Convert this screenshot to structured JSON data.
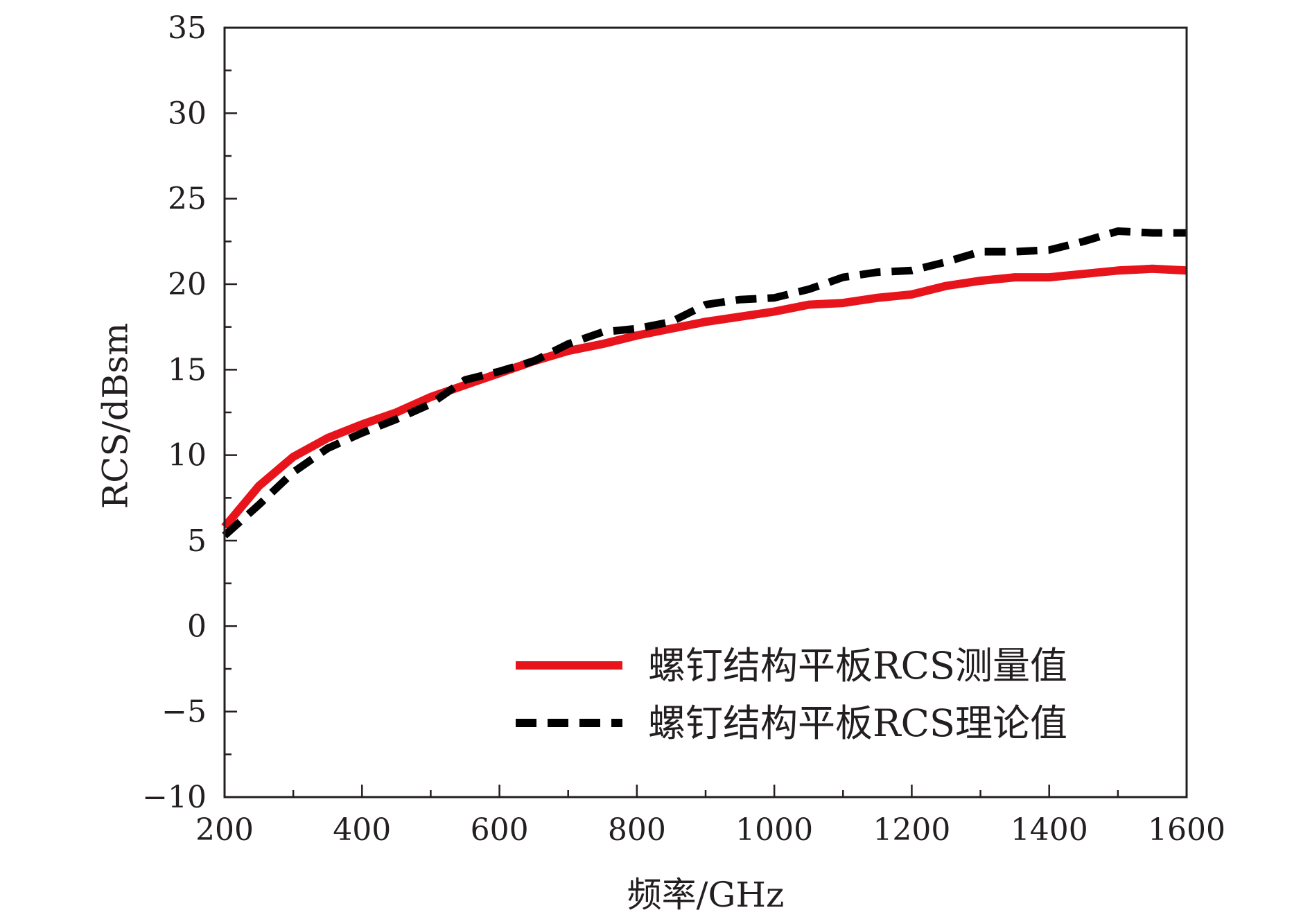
{
  "chart_data": {
    "type": "line",
    "title": "",
    "xlabel": "频率/GHz",
    "ylabel": "RCS/dBsm",
    "xlim": [
      200,
      1600
    ],
    "ylim": [
      -10,
      35
    ],
    "x_ticks": [
      200,
      400,
      600,
      800,
      1000,
      1200,
      1400,
      1600
    ],
    "x_tick_labels": [
      "200",
      "400",
      "600",
      "800",
      "1000",
      "1200",
      "1400",
      "1600"
    ],
    "y_ticks": [
      -10,
      -5,
      0,
      5,
      10,
      15,
      20,
      25,
      30,
      35
    ],
    "y_tick_labels": [
      "−10",
      "−5",
      "0",
      "5",
      "10",
      "15",
      "20",
      "25",
      "30",
      "35"
    ],
    "grid": false,
    "legend_position": "bottom-right",
    "series": [
      {
        "name": "螺钉结构平板RCS测量值",
        "color": "#e8141b",
        "style": "solid",
        "x": [
          200,
          250,
          300,
          350,
          400,
          450,
          500,
          550,
          600,
          650,
          700,
          750,
          800,
          850,
          900,
          950,
          1000,
          1050,
          1100,
          1150,
          1200,
          1250,
          1300,
          1350,
          1400,
          1450,
          1500,
          1550,
          1600
        ],
        "y": [
          5.8,
          8.2,
          9.9,
          11.0,
          11.8,
          12.5,
          13.4,
          14.1,
          14.8,
          15.5,
          16.1,
          16.5,
          17.0,
          17.4,
          17.8,
          18.1,
          18.4,
          18.8,
          18.9,
          19.2,
          19.4,
          19.9,
          20.2,
          20.4,
          20.4,
          20.6,
          20.8,
          20.9,
          20.8
        ]
      },
      {
        "name": "螺钉结构平板RCS理论值",
        "color": "#000000",
        "style": "dashed",
        "x": [
          200,
          250,
          300,
          350,
          400,
          450,
          500,
          550,
          600,
          650,
          700,
          750,
          800,
          850,
          900,
          950,
          1000,
          1050,
          1100,
          1150,
          1200,
          1250,
          1300,
          1350,
          1400,
          1450,
          1500,
          1550,
          1600
        ],
        "y": [
          5.3,
          7.1,
          9.0,
          10.4,
          11.3,
          12.1,
          13.0,
          14.4,
          14.9,
          15.5,
          16.5,
          17.2,
          17.4,
          17.8,
          18.8,
          19.1,
          19.2,
          19.7,
          20.4,
          20.7,
          20.8,
          21.3,
          21.9,
          21.9,
          22.0,
          22.5,
          23.1,
          23.0,
          23.0
        ]
      }
    ]
  }
}
